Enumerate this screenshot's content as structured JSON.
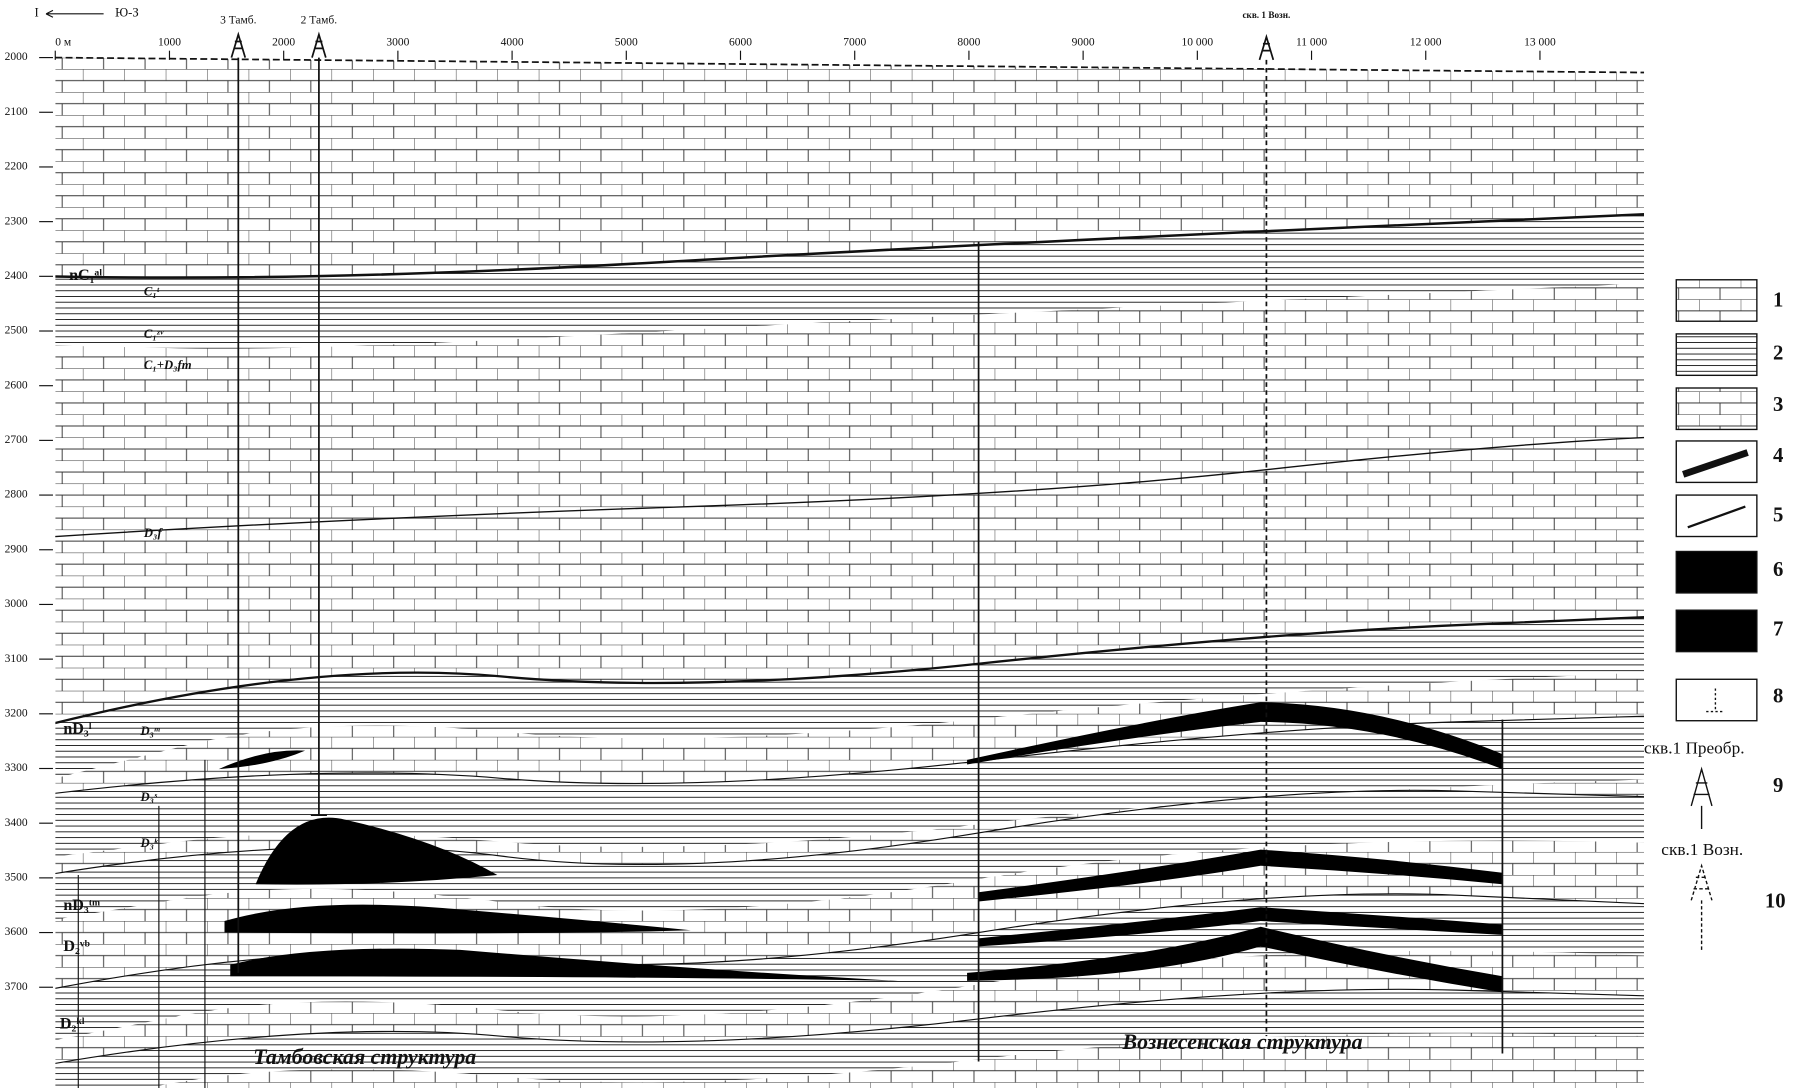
{
  "header": {
    "profile_start": "I",
    "direction": "Ю-З"
  },
  "depth_labels": [
    2000,
    2100,
    2200,
    2300,
    2400,
    2500,
    2600,
    2700,
    2800,
    2900,
    3000,
    3100,
    3200,
    3300,
    3400,
    3500,
    3600,
    3700
  ],
  "distance_labels": [
    {
      "value": 0,
      "label": "0 м"
    },
    1000,
    2000,
    3000,
    4000,
    5000,
    6000,
    7000,
    8000,
    9000,
    {
      "value": 10000,
      "label": "10 000"
    },
    {
      "value": 11000,
      "label": "11 000"
    },
    {
      "value": 12000,
      "label": "12 000"
    },
    {
      "value": 13000,
      "label": "13 000"
    }
  ],
  "wells": [
    "3 Тамб.",
    "2 Тамб.",
    "скв. 1 Возн."
  ],
  "formations": [
    "nC₁ᵃˡ",
    "C₁ᵗ",
    "C₁ᶻᵛ",
    "C₁+D₃fm",
    "D₃f",
    "nD₃ˡ",
    "D₃ᵐ",
    "D₃ˢ",
    "D₃ᵏ",
    "nD₃ᵗᵐ",
    "D₂ᵛᵇ",
    "D₂ᵏˡ"
  ],
  "structures": [
    "Тамбовская структура",
    "Вознесенская структура"
  ],
  "legend": {
    "items": [
      "1",
      "2",
      "3",
      "4",
      "5",
      "6",
      "7",
      "8",
      "9",
      "10"
    ],
    "well_labels": [
      "скв.1 Преобр.",
      "скв.1 Возн."
    ]
  }
}
